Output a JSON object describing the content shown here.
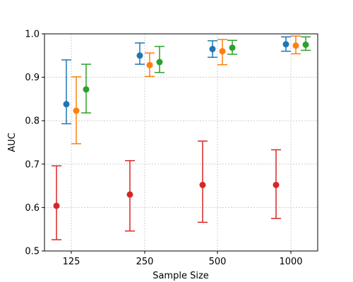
{
  "chart_data": {
    "type": "scatter",
    "xlabel": "Sample Size",
    "ylabel": "AUC",
    "ylim": [
      0.5,
      1.0
    ],
    "grid": true,
    "categories": [
      "125",
      "250",
      "500",
      "1000"
    ],
    "yticks": [
      "0.5",
      "0.6",
      "0.7",
      "0.8",
      "0.9",
      "1.0"
    ],
    "series": [
      {
        "color": "#1f77b4",
        "values": [
          0.838,
          0.95,
          0.965,
          0.976
        ],
        "lower": [
          0.793,
          0.93,
          0.946,
          0.96
        ],
        "upper": [
          0.94,
          0.979,
          0.984,
          0.993
        ]
      },
      {
        "color": "#ff7f0e",
        "values": [
          0.823,
          0.928,
          0.96,
          0.973
        ],
        "lower": [
          0.747,
          0.902,
          0.929,
          0.954
        ],
        "upper": [
          0.901,
          0.956,
          0.987,
          0.995
        ]
      },
      {
        "color": "#2ca02c",
        "values": [
          0.872,
          0.935,
          0.968,
          0.975
        ],
        "lower": [
          0.818,
          0.911,
          0.953,
          0.962
        ],
        "upper": [
          0.93,
          0.971,
          0.985,
          0.993
        ]
      },
      {
        "color": "#d62728",
        "values": [
          0.604,
          0.63,
          0.652,
          0.652
        ],
        "lower": [
          0.526,
          0.546,
          0.566,
          0.575
        ],
        "upper": [
          0.696,
          0.708,
          0.753,
          0.733
        ]
      }
    ]
  }
}
